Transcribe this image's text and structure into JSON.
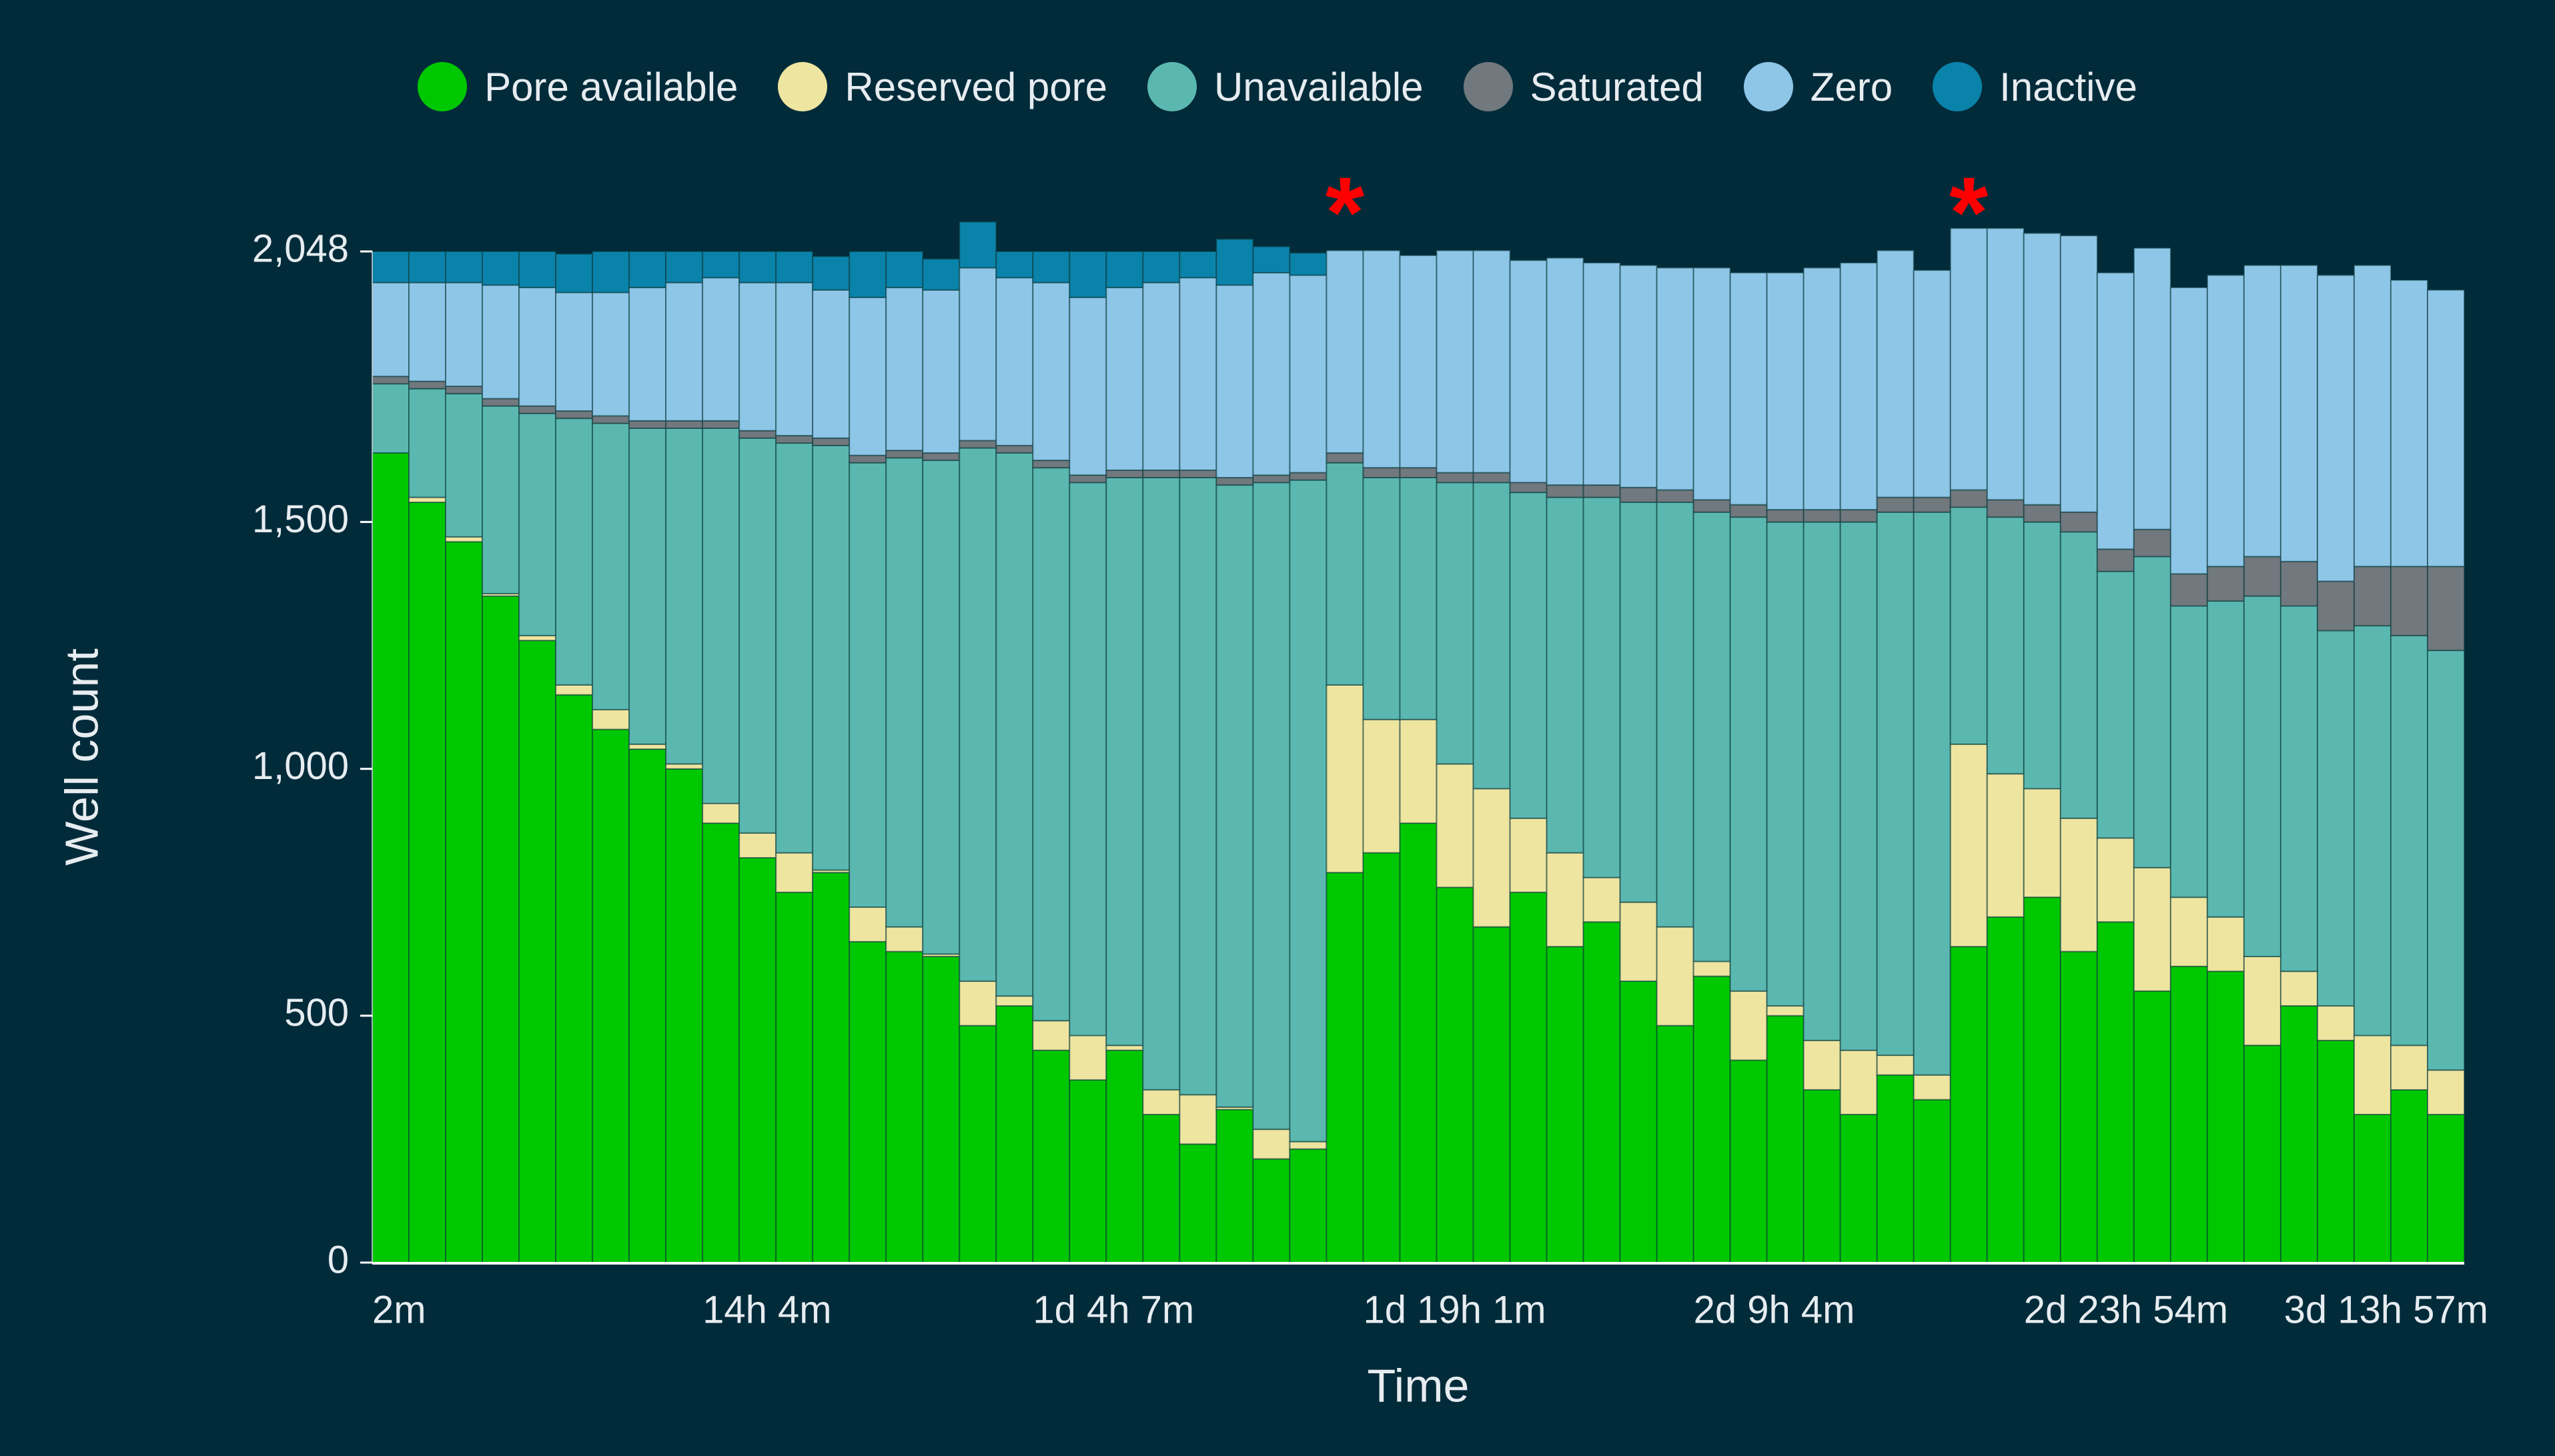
{
  "chart_data": {
    "type": "bar",
    "stacked": true,
    "title": "",
    "xlabel": "Time",
    "ylabel": "Well count",
    "ylim": [
      0,
      2048
    ],
    "yticks": [
      0,
      500,
      1000,
      1500,
      2048
    ],
    "ytick_labels": [
      "0",
      "500",
      "1,000",
      "1,500",
      "2,048"
    ],
    "xtick_labels": [
      {
        "bar": 0,
        "label": "2m"
      },
      {
        "bar": 9,
        "label": "14h 4m"
      },
      {
        "bar": 18,
        "label": "1d 4h 7m"
      },
      {
        "bar": 27,
        "label": "1d 19h 1m"
      },
      {
        "bar": 36,
        "label": "2d 9h 4m"
      },
      {
        "bar": 45,
        "label": "2d 23h 54m"
      },
      {
        "bar": 54,
        "label": "3d 13h 57m"
      }
    ],
    "annotations": [
      {
        "text": "*",
        "bar": 26,
        "color": "#ff0000"
      },
      {
        "text": "*",
        "bar": 43,
        "color": "#ff0000"
      }
    ],
    "legend_position": "top",
    "series": [
      {
        "name": "Pore available",
        "color": "#00c800",
        "values": [
          1640,
          1540,
          1460,
          1350,
          1260,
          1150,
          1080,
          1040,
          1000,
          890,
          820,
          750,
          790,
          650,
          630,
          620,
          480,
          520,
          430,
          370,
          430,
          300,
          240,
          310,
          210,
          230,
          790,
          830,
          890,
          760,
          680,
          750,
          640,
          690,
          570,
          480,
          580,
          410,
          500,
          350,
          300,
          380,
          330,
          640,
          700,
          740,
          630,
          690,
          550,
          600,
          590,
          440,
          520,
          450,
          300,
          350,
          300
        ]
      },
      {
        "name": "Reserved pore",
        "color": "#eee5a0",
        "values": [
          0,
          10,
          10,
          5,
          10,
          20,
          40,
          10,
          10,
          40,
          50,
          80,
          5,
          70,
          50,
          5,
          90,
          20,
          60,
          90,
          10,
          50,
          100,
          5,
          60,
          15,
          380,
          270,
          210,
          250,
          280,
          150,
          190,
          90,
          160,
          200,
          30,
          140,
          20,
          100,
          130,
          40,
          50,
          410,
          290,
          220,
          270,
          170,
          250,
          140,
          110,
          180,
          70,
          70,
          160,
          90,
          90
        ]
      },
      {
        "name": "Unavailable",
        "color": "#5bb8b0",
        "values": [
          140,
          220,
          290,
          380,
          450,
          540,
          580,
          640,
          680,
          760,
          800,
          830,
          860,
          900,
          950,
          1000,
          1080,
          1100,
          1120,
          1120,
          1150,
          1240,
          1250,
          1260,
          1310,
          1340,
          450,
          490,
          490,
          570,
          620,
          660,
          720,
          770,
          810,
          860,
          910,
          960,
          980,
          1050,
          1070,
          1100,
          1140,
          480,
          520,
          540,
          580,
          540,
          630,
          590,
          640,
          730,
          740,
          760,
          830,
          830,
          850
        ]
      },
      {
        "name": "Saturated",
        "color": "#71787e",
        "values": [
          15,
          15,
          15,
          15,
          15,
          15,
          15,
          15,
          15,
          15,
          15,
          15,
          15,
          15,
          15,
          15,
          15,
          15,
          15,
          15,
          15,
          15,
          15,
          15,
          15,
          15,
          20,
          20,
          20,
          20,
          20,
          20,
          25,
          25,
          30,
          25,
          25,
          25,
          25,
          25,
          25,
          30,
          30,
          35,
          35,
          35,
          40,
          45,
          55,
          65,
          70,
          80,
          90,
          100,
          120,
          140,
          170
        ]
      },
      {
        "name": "Zero",
        "color": "#8ec6e8",
        "values": [
          190,
          200,
          210,
          230,
          240,
          240,
          250,
          270,
          280,
          290,
          300,
          310,
          300,
          320,
          330,
          330,
          350,
          340,
          360,
          360,
          370,
          380,
          390,
          390,
          410,
          400,
          410,
          440,
          430,
          450,
          450,
          450,
          460,
          450,
          450,
          450,
          470,
          470,
          480,
          490,
          500,
          500,
          460,
          530,
          550,
          550,
          560,
          560,
          570,
          580,
          590,
          590,
          600,
          620,
          610,
          580,
          560
        ]
      },
      {
        "name": "Inactive",
        "color": "#0a83ab",
        "values": [
          63,
          63,
          63,
          68,
          73,
          78,
          83,
          73,
          63,
          53,
          63,
          63,
          68,
          93,
          73,
          63,
          93,
          53,
          63,
          93,
          73,
          63,
          53,
          93,
          53,
          45,
          0,
          0,
          0,
          0,
          0,
          0,
          0,
          0,
          0,
          0,
          0,
          0,
          0,
          0,
          0,
          0,
          0,
          0,
          0,
          0,
          0,
          0,
          0,
          0,
          0,
          0,
          0,
          0,
          0,
          0,
          0
        ]
      }
    ]
  }
}
